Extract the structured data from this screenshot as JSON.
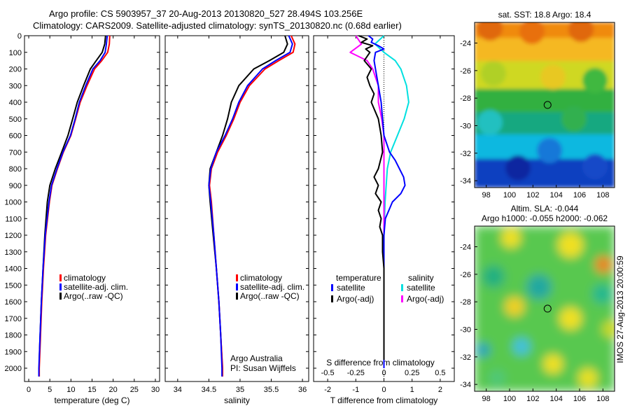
{
  "header": {
    "line1": "Argo profile: CS 5903957_37 20-Aug-2013 20130820_527 28.494S 103.256E",
    "line2": "Climatology: CARS2009. Satellite-adjusted climatology: synTS_20130820.nc (0.68d earlier)"
  },
  "colors": {
    "climatology": "#ff0000",
    "satellite": "#0000ff",
    "argo": "#000000",
    "salinity_satellite": "#00e0e0",
    "salinity_argo": "#ff00ff"
  },
  "chart_data": [
    {
      "type": "line",
      "xlabel": "temperature (deg C)",
      "ylabel": "",
      "xlim": [
        -1,
        31
      ],
      "ylim": [
        2080,
        0
      ],
      "xticks": [
        "0",
        "5",
        "10",
        "15",
        "20",
        "25",
        "30"
      ],
      "yticks": [
        "0",
        "100",
        "200",
        "300",
        "400",
        "500",
        "600",
        "700",
        "800",
        "900",
        "1000",
        "1100",
        "1200",
        "1300",
        "1400",
        "1500",
        "1600",
        "1700",
        "1800",
        "1900",
        "2000"
      ],
      "legend": [
        "climatology",
        "satellite-adj. clim.",
        "Argo(..raw -QC)"
      ],
      "legend_position": "lower-right",
      "series": [
        {
          "name": "climatology",
          "color": "#ff0000",
          "depth": [
            0,
            50,
            100,
            150,
            200,
            300,
            400,
            500,
            600,
            700,
            800,
            900,
            1000,
            1200,
            1400,
            1600,
            1800,
            2000,
            2050
          ],
          "values": [
            19.2,
            19.1,
            18.7,
            17.3,
            15.6,
            13.8,
            12.2,
            11.1,
            10.0,
            8.2,
            6.8,
            5.5,
            4.9,
            4.0,
            3.5,
            3.1,
            2.8,
            2.5,
            2.5
          ]
        },
        {
          "name": "satellite-adj. clim.",
          "color": "#0000ff",
          "depth": [
            0,
            50,
            100,
            150,
            200,
            300,
            400,
            500,
            600,
            700,
            800,
            900,
            1000,
            1200,
            1400,
            1600,
            1800,
            2000,
            2050
          ],
          "values": [
            18.6,
            18.4,
            18.1,
            16.9,
            15.2,
            13.5,
            12.0,
            11.0,
            9.9,
            8.1,
            6.7,
            5.4,
            4.8,
            3.9,
            3.4,
            3.0,
            2.7,
            2.4,
            2.4
          ]
        },
        {
          "name": "Argo(..raw -QC)",
          "color": "#000000",
          "depth": [
            0,
            50,
            100,
            150,
            200,
            300,
            400,
            500,
            600,
            700,
            800,
            900,
            1000,
            1200,
            1400,
            1600,
            1800,
            1950
          ],
          "values": [
            18.2,
            18.0,
            17.4,
            16.0,
            14.6,
            13.0,
            11.5,
            10.4,
            9.3,
            7.8,
            6.3,
            5.0,
            4.4,
            3.8,
            3.4,
            3.0,
            2.7,
            2.5
          ]
        }
      ]
    },
    {
      "type": "line",
      "xlabel": "salinity",
      "ylabel": "",
      "xlim": [
        33.8,
        36.1
      ],
      "ylim": [
        2080,
        0
      ],
      "xticks": [
        "34",
        "34.5",
        "35",
        "35.5",
        "36"
      ],
      "legend": [
        "climatology",
        "satellite-adj. clim.",
        "Argo(..raw -QC)"
      ],
      "legend_position": "lower-right",
      "annotation": [
        "Argo Australia",
        "PI: Susan Wijffels"
      ],
      "series": [
        {
          "name": "climatology",
          "color": "#ff0000",
          "depth": [
            0,
            50,
            100,
            150,
            200,
            300,
            400,
            500,
            600,
            700,
            800,
            900,
            1000,
            1200,
            1400,
            1600,
            1800,
            2000,
            2050
          ],
          "values": [
            35.82,
            35.88,
            35.85,
            35.62,
            35.4,
            35.15,
            35.0,
            34.9,
            34.78,
            34.64,
            34.54,
            34.51,
            34.54,
            34.58,
            34.62,
            34.66,
            34.69,
            34.72,
            34.72
          ]
        },
        {
          "name": "satellite-adj. clim.",
          "color": "#0000ff",
          "depth": [
            0,
            50,
            100,
            150,
            200,
            300,
            400,
            500,
            600,
            700,
            800,
            900,
            1000,
            1200,
            1400,
            1600,
            1800,
            2000,
            2050
          ],
          "values": [
            35.78,
            35.84,
            35.8,
            35.57,
            35.36,
            35.12,
            34.98,
            34.88,
            34.76,
            34.62,
            34.53,
            34.5,
            34.53,
            34.58,
            34.62,
            34.66,
            34.69,
            34.71,
            34.71
          ]
        },
        {
          "name": "Argo(..raw -QC)",
          "color": "#000000",
          "depth": [
            0,
            50,
            100,
            150,
            200,
            300,
            400,
            500,
            600,
            700,
            800,
            900,
            1000,
            1200,
            1400,
            1600,
            1800,
            1950
          ],
          "values": [
            35.72,
            35.76,
            35.7,
            35.47,
            35.22,
            34.98,
            34.86,
            34.8,
            34.72,
            34.62,
            34.52,
            34.5,
            34.52,
            34.57,
            34.62,
            34.66,
            34.69,
            34.71
          ]
        }
      ]
    },
    {
      "type": "line",
      "xlabel": "T difference from climatology",
      "xlabel_top": "S difference from climatology",
      "xlim": [
        -2.5,
        2.5
      ],
      "ylim": [
        2080,
        0
      ],
      "xticks": [
        "-2",
        "-1",
        "0",
        "1",
        "2"
      ],
      "xticks_top": [
        "-0.5",
        "-0.25",
        "0",
        "0.25",
        "0.5"
      ],
      "legend_left_title": "temperature",
      "legend_right_title": "salinity",
      "legend": [
        "satellite",
        "Argo(-adj)",
        "satellite",
        "Argo(-adj)"
      ],
      "legend_position": "lower-center",
      "series": [
        {
          "name": "satellite",
          "color": "#0000ff",
          "depth": [
            0,
            20,
            40,
            60,
            80,
            100,
            150,
            200,
            300,
            400,
            500,
            600,
            700,
            750,
            800,
            850,
            900,
            950,
            1000,
            1100,
            1200,
            1400,
            1600,
            1800,
            2000
          ],
          "values": [
            -0.55,
            -0.4,
            -0.45,
            -0.2,
            0.0,
            -0.3,
            -0.35,
            -0.3,
            -0.2,
            -0.1,
            -0.05,
            0.0,
            0.2,
            0.4,
            0.55,
            0.7,
            0.75,
            0.6,
            0.3,
            0.05,
            0.0,
            0.0,
            0.0,
            0.0,
            0.0
          ]
        },
        {
          "name": "Argo(-adj)",
          "color": "#000000",
          "depth": [
            0,
            20,
            40,
            60,
            80,
            100,
            150,
            200,
            250,
            300,
            350,
            400,
            500,
            600,
            700,
            800,
            850,
            900,
            950,
            1000,
            1050,
            1100,
            1150,
            1200,
            1300,
            1400,
            1600,
            1800,
            1950
          ],
          "values": [
            -0.9,
            -0.6,
            -0.8,
            -0.4,
            -0.65,
            -0.5,
            -0.7,
            -0.45,
            -0.6,
            -0.5,
            -0.35,
            -0.45,
            -0.2,
            -0.1,
            -0.05,
            -0.2,
            -0.35,
            -0.2,
            -0.3,
            -0.1,
            -0.2,
            -0.1,
            -0.15,
            -0.05,
            -0.05,
            0.0,
            0.0,
            0.0,
            0.0
          ]
        },
        {
          "name": "satellite",
          "color": "#00e0e0",
          "depth": [
            0,
            50,
            100,
            150,
            200,
            300,
            400,
            500,
            600,
            700,
            800,
            900,
            1000,
            1200,
            1400,
            1600,
            1800,
            2000
          ],
          "values": [
            0.0,
            -0.08,
            0.0,
            0.1,
            0.15,
            0.2,
            0.22,
            0.18,
            0.12,
            0.06,
            0.03,
            0.02,
            0.01,
            0.0,
            0.0,
            0.0,
            0.0,
            0.0
          ]
        },
        {
          "name": "Argo(-adj)",
          "color": "#ff00ff",
          "depth": [
            0,
            50,
            100,
            150,
            200,
            300,
            400,
            500,
            600,
            700,
            800,
            900,
            1000,
            1200,
            1400,
            1600,
            1800,
            1950
          ],
          "values": [
            -0.25,
            -0.2,
            -0.3,
            -0.15,
            -0.1,
            -0.05,
            -0.05,
            -0.02,
            0.0,
            0.0,
            0.0,
            0.0,
            0.0,
            0.0,
            0.0,
            0.0,
            0.0,
            0.0
          ]
        }
      ]
    },
    {
      "type": "heatmap",
      "title": "sat. SST: 18.8 Argo: 18.4",
      "xticks": [
        "98",
        "100",
        "102",
        "104",
        "106",
        "108"
      ],
      "yticks": [
        "-24",
        "-26",
        "-28",
        "-30",
        "-32",
        "-34"
      ],
      "xlim": [
        97,
        109
      ],
      "ylim": [
        -34.5,
        -22.5
      ],
      "float_marker": {
        "lon": 103.256,
        "lat": -28.494
      }
    },
    {
      "type": "heatmap",
      "title": "Altim. SLA: -0.044",
      "subtitle": "Argo h1000: -0.055 h2000: -0.062",
      "xticks": [
        "98",
        "100",
        "102",
        "104",
        "106",
        "108"
      ],
      "yticks": [
        "-24",
        "-26",
        "-28",
        "-30",
        "-32",
        "-34"
      ],
      "xlim": [
        97,
        109
      ],
      "ylim": [
        -34.5,
        -22.5
      ],
      "float_marker": {
        "lon": 103.256,
        "lat": -28.494
      },
      "side_text": "IMOS 27-Aug-2013 20:00:59"
    }
  ]
}
